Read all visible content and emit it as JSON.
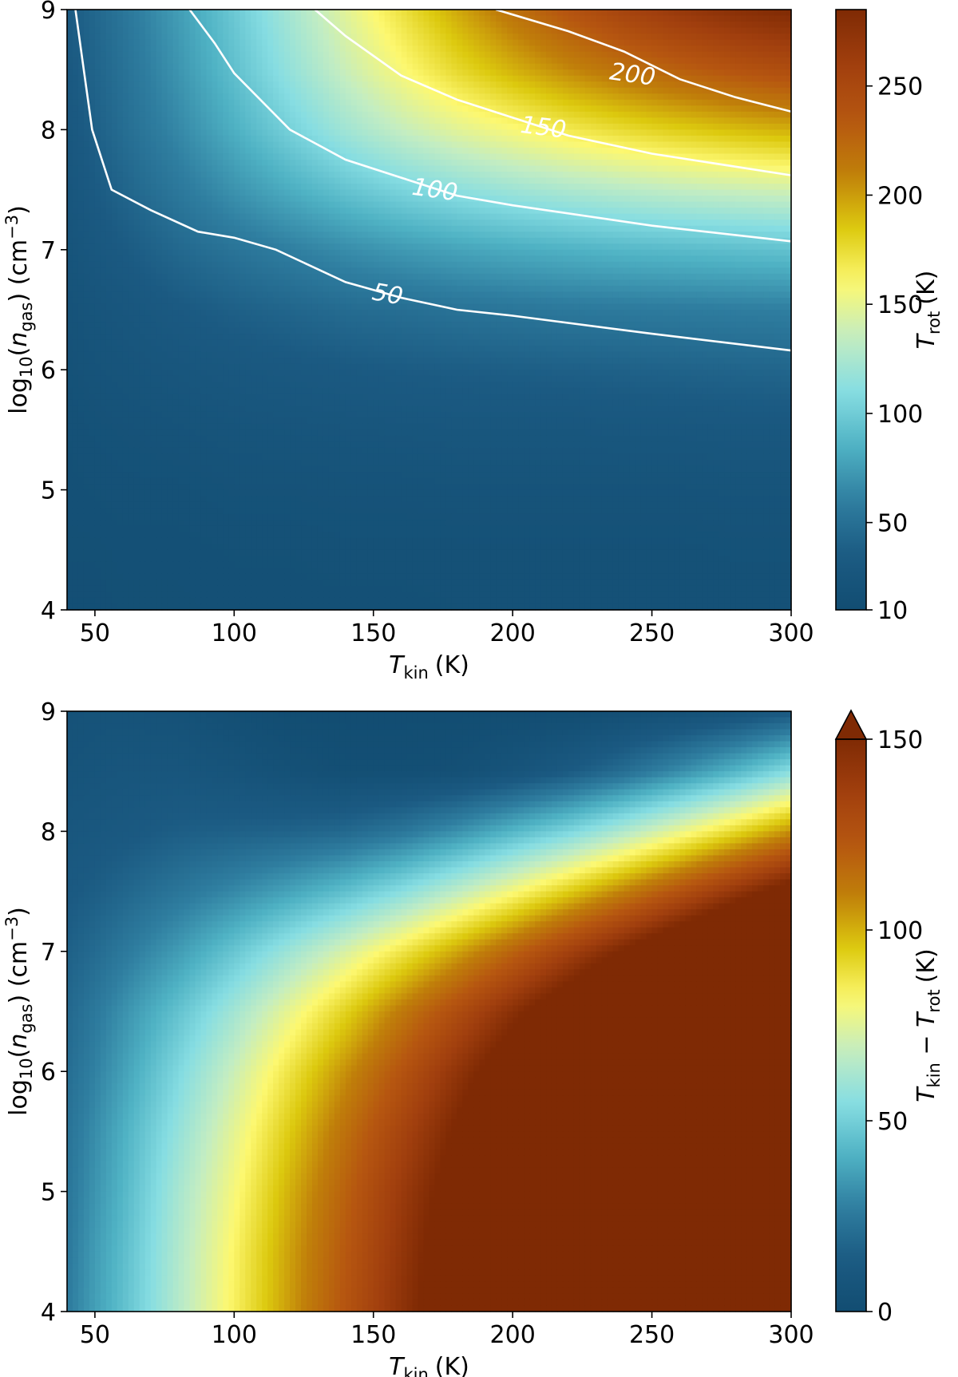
{
  "colors": {
    "colormap": [
      "#124d72",
      "#1b5a82",
      "#2f7ea0",
      "#4fb2c4",
      "#86dde2",
      "#c3edc2",
      "#fdf870",
      "#dcc90e",
      "#c07f0a",
      "#b65610",
      "#a13f0e",
      "#7f2a04"
    ],
    "contour": "#ffffff",
    "axes": "#000000"
  },
  "chart_data": [
    {
      "type": "heatmap",
      "subtype": "filled-contour",
      "xlabel": {
        "main": "T",
        "sub": "kin",
        "units": "(K)"
      },
      "ylabel": {
        "main": "log",
        "sub1": "10",
        "open": "(",
        "var": "n",
        "sub2": "gas",
        "mid": ") (cm",
        "sup": "−3",
        "close": ")"
      },
      "colorbar_label": {
        "main": "T",
        "sub": "rot",
        "units": "(K)"
      },
      "xlim": [
        40,
        300
      ],
      "ylim": [
        4,
        9
      ],
      "xticks": [
        50,
        100,
        150,
        200,
        250,
        300
      ],
      "yticks": [
        4,
        5,
        6,
        7,
        8,
        9
      ],
      "colorbar": {
        "min": 10,
        "max": 285,
        "ticks": [
          10,
          50,
          100,
          150,
          200,
          250
        ],
        "extend": "none"
      },
      "x": [
        40,
        50,
        60,
        80,
        100,
        120,
        140,
        160,
        180,
        200,
        220,
        240,
        260,
        280,
        300
      ],
      "y": [
        4,
        4.5,
        5,
        5.5,
        6,
        6.5,
        7,
        7.5,
        8,
        8.5,
        9
      ],
      "z": [
        [
          14,
          14,
          15,
          15,
          16,
          16,
          16,
          16,
          17,
          17,
          17,
          17,
          17,
          17,
          17
        ],
        [
          15,
          15,
          16,
          16,
          17,
          17,
          18,
          18,
          18,
          18,
          18,
          18,
          18,
          19,
          19
        ],
        [
          16,
          17,
          18,
          18,
          20,
          20,
          21,
          21,
          22,
          22,
          22,
          22,
          22,
          23,
          23
        ],
        [
          17,
          19,
          20,
          22,
          24,
          25,
          26,
          27,
          28,
          28,
          28,
          29,
          29,
          30,
          30
        ],
        [
          19,
          22,
          24,
          27,
          30,
          32,
          34,
          36,
          37,
          38,
          39,
          40,
          41,
          42,
          43
        ],
        [
          21,
          25,
          28,
          34,
          39,
          43,
          47,
          49,
          52,
          54,
          56,
          57,
          58,
          59,
          60
        ],
        [
          24,
          30,
          35,
          45,
          53,
          60,
          67,
          73,
          78,
          82,
          85,
          88,
          90,
          92,
          94
        ],
        [
          27,
          35,
          42,
          56,
          70,
          83,
          95,
          105,
          113,
          120,
          126,
          131,
          135,
          138,
          141
        ],
        [
          30,
          39,
          48,
          65,
          84,
          103,
          121,
          136,
          148,
          158,
          168,
          176,
          183,
          189,
          194
        ],
        [
          33,
          42,
          51,
          71,
          93,
          116,
          138,
          158,
          177,
          193,
          207,
          219,
          229,
          238,
          245
        ],
        [
          35,
          44,
          54,
          75,
          98,
          123,
          148,
          172,
          196,
          218,
          238,
          255,
          268,
          278,
          285
        ]
      ],
      "contours": [
        {
          "level": 50,
          "label": "50",
          "label_at": [
            155,
            6.62
          ],
          "label_angle": 10,
          "points": [
            [
              43,
              9
            ],
            [
              46,
              8.5
            ],
            [
              49,
              8.0
            ],
            [
              56,
              7.5
            ],
            [
              70,
              7.33
            ],
            [
              87,
              7.15
            ],
            [
              100,
              7.1
            ],
            [
              115,
              7.0
            ],
            [
              140,
              6.73
            ],
            [
              160,
              6.6
            ],
            [
              180,
              6.5
            ],
            [
              200,
              6.45
            ],
            [
              250,
              6.3
            ],
            [
              300,
              6.16
            ]
          ]
        },
        {
          "level": 100,
          "label": "100",
          "label_at": [
            172,
            7.49
          ],
          "label_angle": 8,
          "points": [
            [
              84,
              9
            ],
            [
              93,
              8.72
            ],
            [
              100,
              8.47
            ],
            [
              120,
              8.0
            ],
            [
              140,
              7.75
            ],
            [
              160,
              7.6
            ],
            [
              180,
              7.45
            ],
            [
              200,
              7.37
            ],
            [
              250,
              7.2
            ],
            [
              300,
              7.07
            ]
          ]
        },
        {
          "level": 150,
          "label": "150",
          "label_at": [
            211,
            8.01
          ],
          "label_angle": 7,
          "points": [
            [
              129,
              9
            ],
            [
              140,
              8.78
            ],
            [
              160,
              8.45
            ],
            [
              180,
              8.25
            ],
            [
              200,
              8.1
            ],
            [
              220,
              7.95
            ],
            [
              250,
              7.8
            ],
            [
              300,
              7.62
            ]
          ]
        },
        {
          "level": 200,
          "label": "200",
          "label_at": [
            243,
            8.45
          ],
          "label_angle": 8,
          "points": [
            [
              194,
              9
            ],
            [
              220,
              8.82
            ],
            [
              240,
              8.65
            ],
            [
              260,
              8.42
            ],
            [
              280,
              8.27
            ],
            [
              300,
              8.15
            ]
          ]
        }
      ]
    },
    {
      "type": "heatmap",
      "subtype": "filled-contour",
      "xlabel": {
        "main": "T",
        "sub": "kin",
        "units": "(K)"
      },
      "ylabel": {
        "main": "log",
        "sub1": "10",
        "open": "(",
        "var": "n",
        "sub2": "gas",
        "mid": ") (cm",
        "sup": "−3",
        "close": ")"
      },
      "colorbar_label": {
        "main": "T",
        "sub1": "kin",
        "minus": " − ",
        "main2": "T",
        "sub2": "rot",
        "units": "(K)"
      },
      "xlim": [
        40,
        300
      ],
      "ylim": [
        4,
        9
      ],
      "xticks": [
        50,
        100,
        150,
        200,
        250,
        300
      ],
      "yticks": [
        4,
        5,
        6,
        7,
        8,
        9
      ],
      "colorbar": {
        "min": 0,
        "max": 150,
        "ticks": [
          0,
          50,
          100,
          150
        ],
        "extend": "max"
      },
      "x": [
        40,
        50,
        60,
        80,
        100,
        120,
        140,
        160,
        180,
        200,
        220,
        240,
        260,
        280,
        300
      ],
      "y": [
        4,
        4.5,
        5,
        5.5,
        6,
        6.5,
        7,
        7.5,
        8,
        8.5,
        9
      ],
      "z": [
        [
          26,
          36,
          45,
          65,
          84,
          104,
          124,
          144,
          163,
          183,
          203,
          223,
          243,
          263,
          283
        ],
        [
          25,
          35,
          44,
          64,
          83,
          103,
          122,
          142,
          162,
          182,
          202,
          222,
          242,
          261,
          281
        ],
        [
          24,
          33,
          42,
          62,
          80,
          100,
          119,
          139,
          158,
          178,
          198,
          218,
          238,
          257,
          277
        ],
        [
          23,
          31,
          40,
          58,
          76,
          95,
          114,
          133,
          152,
          172,
          192,
          211,
          231,
          250,
          270
        ],
        [
          21,
          28,
          36,
          53,
          70,
          88,
          106,
          124,
          143,
          162,
          181,
          200,
          219,
          238,
          257
        ],
        [
          19,
          25,
          32,
          46,
          61,
          77,
          93,
          111,
          128,
          146,
          164,
          183,
          202,
          221,
          240
        ],
        [
          16,
          20,
          25,
          35,
          47,
          60,
          73,
          87,
          102,
          118,
          135,
          152,
          170,
          188,
          206
        ],
        [
          13,
          15,
          18,
          24,
          30,
          37,
          45,
          55,
          67,
          80,
          94,
          109,
          125,
          142,
          159
        ],
        [
          10,
          11,
          12,
          15,
          16,
          17,
          19,
          24,
          32,
          42,
          52,
          64,
          77,
          91,
          106
        ],
        [
          7,
          8,
          9,
          9,
          7,
          4,
          2,
          2,
          3,
          7,
          13,
          21,
          31,
          42,
          55
        ],
        [
          5,
          6,
          6,
          5,
          2,
          0,
          0,
          0,
          0,
          0,
          0,
          2,
          4,
          7,
          12
        ]
      ],
      "contours": []
    }
  ]
}
